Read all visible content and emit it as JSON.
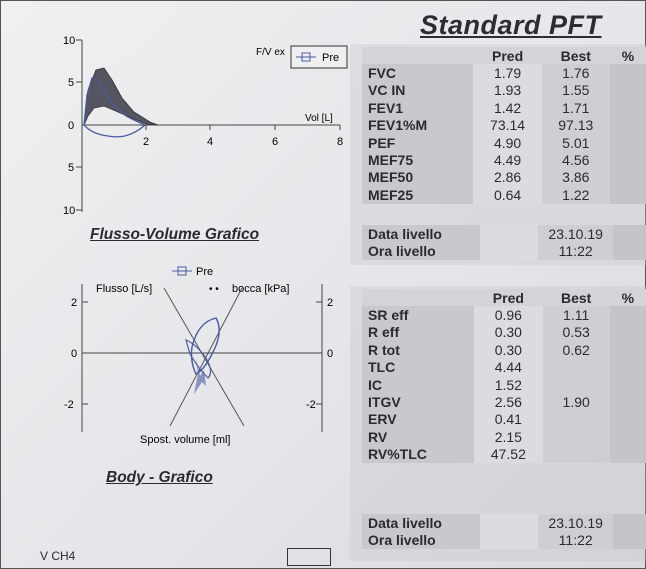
{
  "title": "Standard PFT",
  "col_pred": "Pred",
  "col_best": "Best",
  "col_pct": "%",
  "table1": [
    {
      "label": "FVC",
      "pred": "1.79",
      "best": "1.76"
    },
    {
      "label": "VC IN",
      "pred": "1.93",
      "best": "1.55"
    },
    {
      "label": "FEV1",
      "pred": "1.42",
      "best": "1.71"
    },
    {
      "label": "FEV1%M",
      "pred": "73.14",
      "best": "97.13"
    },
    {
      "label": "PEF",
      "pred": "4.90",
      "best": "5.01"
    },
    {
      "label": "MEF75",
      "pred": "4.49",
      "best": "4.56"
    },
    {
      "label": "MEF50",
      "pred": "2.86",
      "best": "3.86"
    },
    {
      "label": "MEF25",
      "pred": "0.64",
      "best": "1.22"
    }
  ],
  "info1": {
    "date_label": "Data livello",
    "date": "23.10.19",
    "time_label": "Ora livello",
    "time": "11:22"
  },
  "table2": [
    {
      "label": "SR eff",
      "pred": "0.96",
      "best": "1.11"
    },
    {
      "label": "R eff",
      "pred": "0.30",
      "best": "0.53"
    },
    {
      "label": "R tot",
      "pred": "0.30",
      "best": "0.62"
    },
    {
      "label": "TLC",
      "pred": "4.44",
      "best": ""
    },
    {
      "label": "IC",
      "pred": "1.52",
      "best": ""
    },
    {
      "label": "ITGV",
      "pred": "2.56",
      "best": "1.90"
    },
    {
      "label": "ERV",
      "pred": "0.41",
      "best": ""
    },
    {
      "label": "RV",
      "pred": "2.15",
      "best": ""
    },
    {
      "label": "RV%TLC",
      "pred": "47.52",
      "best": ""
    }
  ],
  "info2": {
    "date_label": "Data livello",
    "date": "23.10.19",
    "time_label": "Ora livello",
    "time": "11:22"
  },
  "plot1": {
    "title": "Flusso-Volume Grafico",
    "legend_head": "F/V ex",
    "legend": "Pre",
    "xlabel": "Vol [L]",
    "yticks": [
      "10",
      "5",
      "0",
      "5",
      "10"
    ],
    "xticks": [
      "2",
      "4",
      "6",
      "8"
    ]
  },
  "plot2": {
    "title": "Body - Grafico",
    "legend": "Pre",
    "ylabel_left": "Flusso [L/s]",
    "ylabel_right": "bocca [kPa]",
    "xlabel": "Spost. volume [ml]",
    "yticks_left": [
      "2",
      "0",
      "-2"
    ],
    "yticks_right": [
      "2",
      "0",
      "-2"
    ]
  },
  "footer": {
    "left": "V  CH4"
  },
  "colors": {
    "curve": "#4a5aa0",
    "fill": "#555560"
  }
}
